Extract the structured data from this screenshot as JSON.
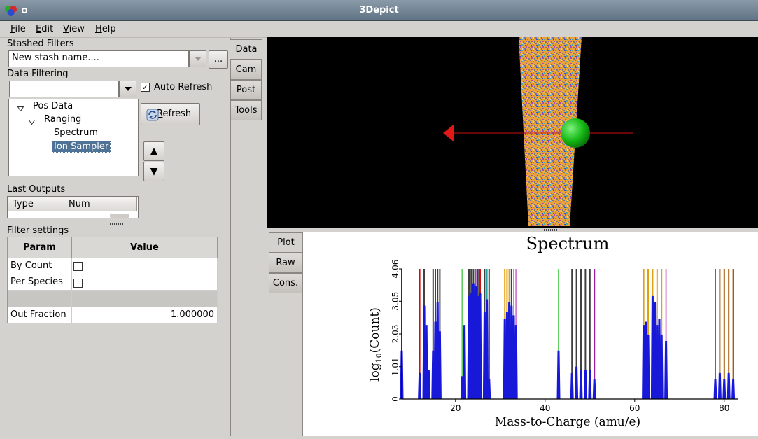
{
  "window": {
    "title": "3Depict"
  },
  "menu": [
    {
      "label": "File",
      "mnemonic": "F",
      "rest": "ile"
    },
    {
      "label": "Edit",
      "mnemonic": "E",
      "rest": "dit"
    },
    {
      "label": "View",
      "mnemonic": "V",
      "rest": "iew"
    },
    {
      "label": "Help",
      "mnemonic": "H",
      "rest": "elp"
    }
  ],
  "stash": {
    "label": "Stashed Filters",
    "value": "New stash name....",
    "more_button": "..."
  },
  "filtering": {
    "label": "Data Filtering",
    "combo_value": "",
    "auto_refresh_label": "Auto Refresh",
    "auto_refresh_checked": true,
    "refresh_button": "Refresh",
    "refresh_mnemonic": "R",
    "refresh_rest": "efresh",
    "up_glyph": "▲",
    "down_glyph": "▼"
  },
  "tree": [
    {
      "label": "Pos Data",
      "depth": 0,
      "expanded": true
    },
    {
      "label": "Ranging",
      "depth": 1,
      "expanded": true
    },
    {
      "label": "Spectrum",
      "depth": 2
    },
    {
      "label": "Ion Sampler",
      "depth": 2,
      "selected": true
    }
  ],
  "outputs": {
    "label": "Last Outputs",
    "col_type": "Type",
    "col_num": "Num"
  },
  "settings": {
    "label": "Filter settings",
    "col_param": "Param",
    "col_value": "Value",
    "rows": [
      {
        "param": "By Count",
        "kind": "checkbox",
        "checked": false
      },
      {
        "param": "Per Species",
        "kind": "checkbox",
        "checked": false
      },
      {
        "param": "",
        "kind": "blank"
      },
      {
        "param": "Out Fraction",
        "kind": "text",
        "value": "1.000000"
      }
    ]
  },
  "view_tabs": [
    "Data",
    "Cam",
    "Post",
    "Tools"
  ],
  "plot_tabs": [
    "Plot",
    "Raw",
    "Cons."
  ],
  "colors": {
    "background": "#d4d2cf",
    "selection": "#4f7397",
    "spectrum": "#1818d8"
  },
  "chart_data": {
    "type": "bar",
    "title": "Spectrum",
    "xlabel": "Mass-to-Charge (amu/e)",
    "ylabel_main": "log",
    "ylabel_sub": "10",
    "ylabel_rest": "(Count)",
    "xlim": [
      8,
      83
    ],
    "ylim": [
      0,
      4.06
    ],
    "xticks": [
      20,
      40,
      60,
      80
    ],
    "yticks": [
      0,
      1.01,
      2.03,
      3.05,
      4.06
    ],
    "peaks": [
      {
        "x": 8.0,
        "y": 1.5
      },
      {
        "x": 12.0,
        "y": 0.8
      },
      {
        "x": 13.0,
        "y": 2.9
      },
      {
        "x": 13.5,
        "y": 2.3
      },
      {
        "x": 14.0,
        "y": 0.9
      },
      {
        "x": 15.0,
        "y": 1.5
      },
      {
        "x": 15.5,
        "y": 2.4
      },
      {
        "x": 16.0,
        "y": 3.0
      },
      {
        "x": 16.5,
        "y": 2.1
      },
      {
        "x": 21.5,
        "y": 0.7
      },
      {
        "x": 22.0,
        "y": 2.3
      },
      {
        "x": 23.0,
        "y": 3.2
      },
      {
        "x": 23.5,
        "y": 3.3
      },
      {
        "x": 24.0,
        "y": 3.6
      },
      {
        "x": 24.5,
        "y": 3.5
      },
      {
        "x": 25.0,
        "y": 3.2
      },
      {
        "x": 25.5,
        "y": 3.3
      },
      {
        "x": 26.5,
        "y": 2.7
      },
      {
        "x": 27.0,
        "y": 3.1
      },
      {
        "x": 27.5,
        "y": 0.6
      },
      {
        "x": 31.0,
        "y": 2.5
      },
      {
        "x": 31.5,
        "y": 2.7
      },
      {
        "x": 32.0,
        "y": 3.0
      },
      {
        "x": 32.5,
        "y": 2.9
      },
      {
        "x": 33.0,
        "y": 2.6
      },
      {
        "x": 33.5,
        "y": 2.3
      },
      {
        "x": 43.0,
        "y": 1.5
      },
      {
        "x": 46.0,
        "y": 0.8
      },
      {
        "x": 47.0,
        "y": 1.0
      },
      {
        "x": 48.0,
        "y": 0.9
      },
      {
        "x": 49.0,
        "y": 0.9
      },
      {
        "x": 50.0,
        "y": 0.9
      },
      {
        "x": 51.0,
        "y": 0.6
      },
      {
        "x": 62.0,
        "y": 2.3
      },
      {
        "x": 62.5,
        "y": 2.4
      },
      {
        "x": 63.0,
        "y": 2.0
      },
      {
        "x": 64.0,
        "y": 3.2
      },
      {
        "x": 64.5,
        "y": 3.0
      },
      {
        "x": 65.0,
        "y": 2.3
      },
      {
        "x": 65.5,
        "y": 2.5
      },
      {
        "x": 66.0,
        "y": 2.0
      },
      {
        "x": 67.0,
        "y": 1.8
      },
      {
        "x": 78.0,
        "y": 0.6
      },
      {
        "x": 79.0,
        "y": 0.8
      },
      {
        "x": 80.0,
        "y": 0.6
      },
      {
        "x": 81.0,
        "y": 0.8
      },
      {
        "x": 82.0,
        "y": 0.6
      }
    ],
    "range_lines": [
      {
        "x": 8.0,
        "color": "#20a0a0"
      },
      {
        "x": 12.0,
        "color": "#d01010"
      },
      {
        "x": 13.0,
        "color": "#404040"
      },
      {
        "x": 15.0,
        "color": "#404040"
      },
      {
        "x": 15.5,
        "color": "#404040"
      },
      {
        "x": 16.0,
        "color": "#404040"
      },
      {
        "x": 16.5,
        "color": "#404040"
      },
      {
        "x": 21.5,
        "color": "#60d060"
      },
      {
        "x": 23.0,
        "color": "#404040"
      },
      {
        "x": 23.5,
        "color": "#404040"
      },
      {
        "x": 24.0,
        "color": "#404040"
      },
      {
        "x": 24.5,
        "color": "#a040c0"
      },
      {
        "x": 25.0,
        "color": "#404040"
      },
      {
        "x": 25.5,
        "color": "#d01010"
      },
      {
        "x": 26.5,
        "color": "#404040"
      },
      {
        "x": 27.0,
        "color": "#20a0a0"
      },
      {
        "x": 27.5,
        "color": "#404040"
      },
      {
        "x": 31.0,
        "color": "#e0a010"
      },
      {
        "x": 31.5,
        "color": "#e0a010"
      },
      {
        "x": 32.0,
        "color": "#e0a010"
      },
      {
        "x": 32.5,
        "color": "#404040"
      },
      {
        "x": 33.0,
        "color": "#e0a010"
      },
      {
        "x": 33.5,
        "color": "#d080d0"
      },
      {
        "x": 43.0,
        "color": "#60d060"
      },
      {
        "x": 46.0,
        "color": "#404040"
      },
      {
        "x": 47.0,
        "color": "#404040"
      },
      {
        "x": 48.0,
        "color": "#404040"
      },
      {
        "x": 49.0,
        "color": "#404040"
      },
      {
        "x": 50.0,
        "color": "#404040"
      },
      {
        "x": 51.0,
        "color": "#a020a0"
      },
      {
        "x": 62.0,
        "color": "#e0a010"
      },
      {
        "x": 63.0,
        "color": "#e0a010"
      },
      {
        "x": 64.0,
        "color": "#e0a010"
      },
      {
        "x": 65.0,
        "color": "#e0a010"
      },
      {
        "x": 66.0,
        "color": "#e0a010"
      },
      {
        "x": 67.0,
        "color": "#d080d0"
      },
      {
        "x": 78.0,
        "color": "#a06010"
      },
      {
        "x": 79.0,
        "color": "#a06010"
      },
      {
        "x": 80.0,
        "color": "#a06010"
      },
      {
        "x": 81.0,
        "color": "#a06010"
      },
      {
        "x": 82.0,
        "color": "#a06010"
      }
    ]
  }
}
